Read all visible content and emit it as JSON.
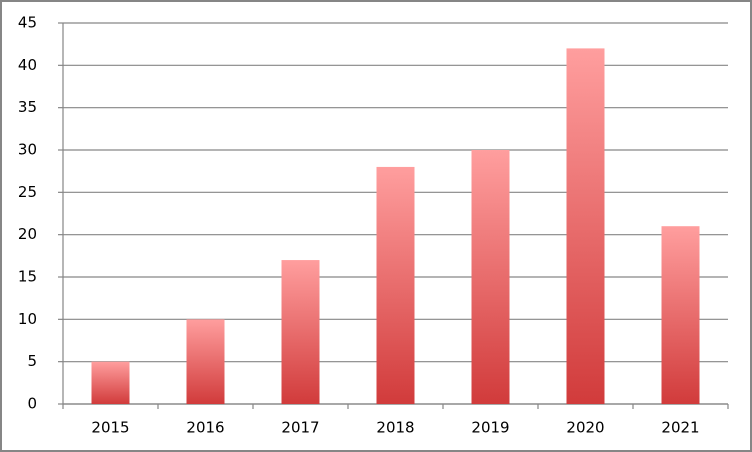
{
  "chart_data": {
    "type": "bar",
    "categories": [
      "2015",
      "2016",
      "2017",
      "2018",
      "2019",
      "2020",
      "2021"
    ],
    "values": [
      5,
      10,
      17,
      28,
      30,
      42,
      21
    ],
    "color": "#d13b3b",
    "color_top": "#ff9e9e",
    "ylim": [
      0,
      45
    ],
    "yticks": [
      0,
      5,
      10,
      15,
      20,
      25,
      30,
      35,
      40,
      45
    ],
    "grid": true
  }
}
